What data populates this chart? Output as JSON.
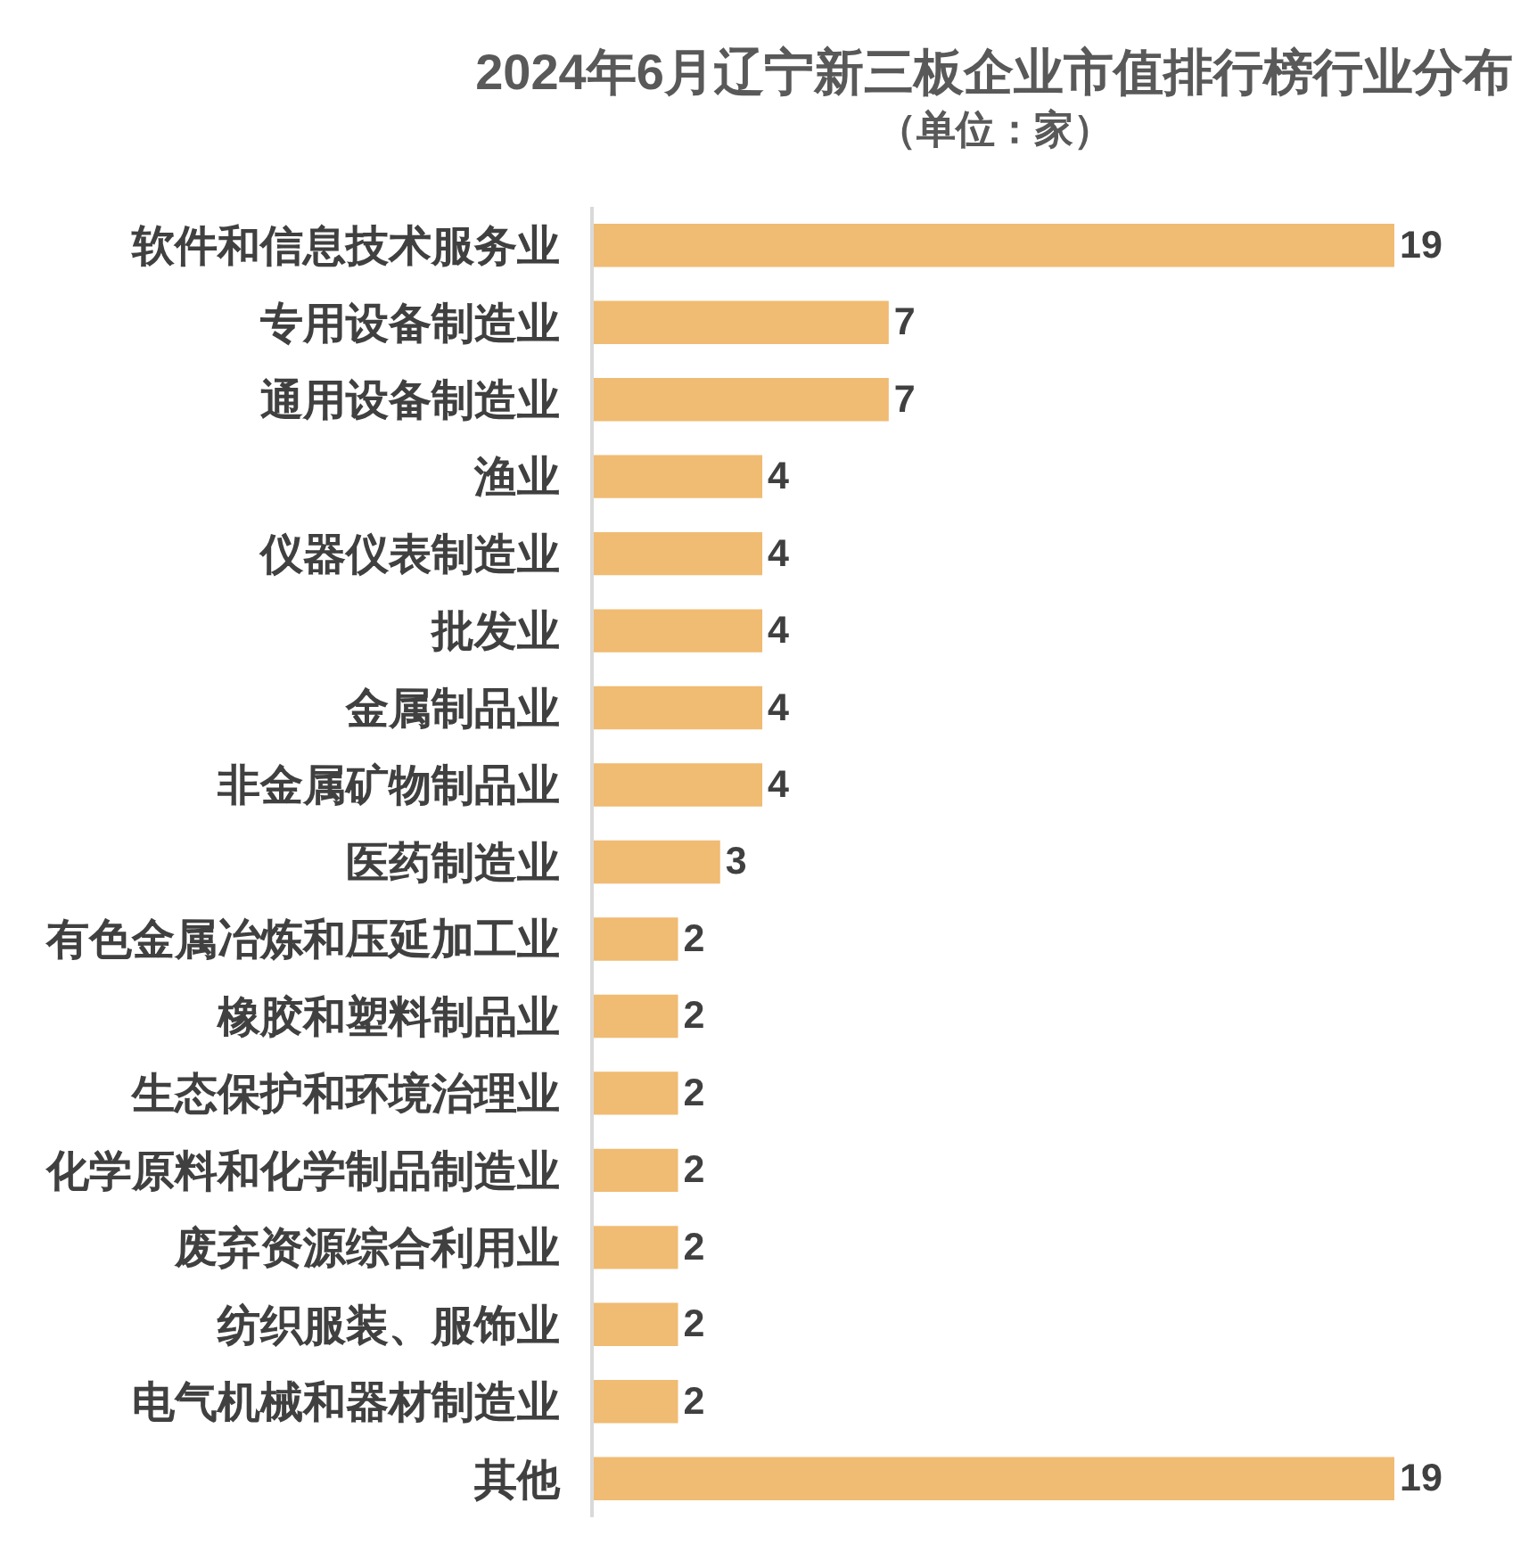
{
  "chart_data": {
    "type": "bar",
    "orientation": "horizontal",
    "title": "2024年6月辽宁新三板企业市值排行榜行业分布",
    "subtitle": "（单位：家）",
    "categories": [
      "软件和信息技术服务业",
      "专用设备制造业",
      "通用设备制造业",
      "渔业",
      "仪器仪表制造业",
      "批发业",
      "金属制品业",
      "非金属矿物制品业",
      "医药制造业",
      "有色金属冶炼和压延加工业",
      "橡胶和塑料制品业",
      "生态保护和环境治理业",
      "化学原料和化学制品制造业",
      "废弃资源综合利用业",
      "纺织服装、服饰业",
      "电气机械和器材制造业",
      "其他"
    ],
    "values": [
      19,
      7,
      7,
      4,
      4,
      4,
      4,
      4,
      3,
      2,
      2,
      2,
      2,
      2,
      2,
      2,
      19
    ],
    "color": "#f0bb72",
    "data_labels": true
  }
}
